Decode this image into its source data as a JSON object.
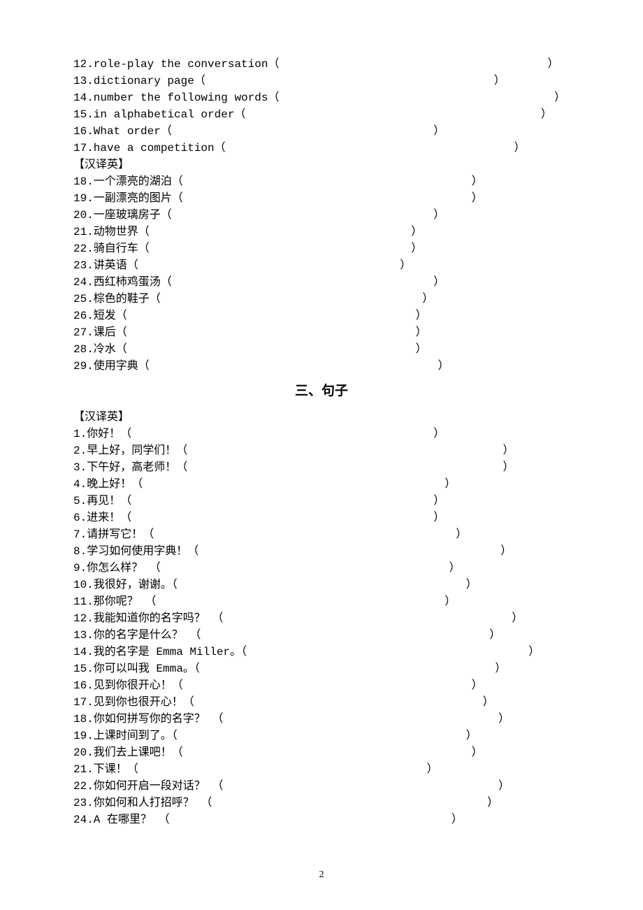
{
  "section1_items": [
    {
      "num": "12",
      "text": "role-play the conversation",
      "gap": "                                        "
    },
    {
      "num": "13",
      "text": "dictionary page",
      "gap": "                                           "
    },
    {
      "num": "14",
      "text": "number the following words",
      "gap": "                                         "
    },
    {
      "num": "15",
      "text": "in alphabetical order",
      "gap": "                                            "
    },
    {
      "num": "16",
      "text": "What order",
      "gap": "                                       "
    },
    {
      "num": "17",
      "text": "have a competition",
      "gap": "                                           "
    }
  ],
  "section2_label": "【汉译英】",
  "section2_items": [
    {
      "num": "18",
      "text": "一个漂亮的湖泊",
      "gap": "                                           "
    },
    {
      "num": "19",
      "text": "一副漂亮的图片",
      "gap": "                                           "
    },
    {
      "num": "20",
      "text": "一座玻璃房子",
      "gap": "                                       "
    },
    {
      "num": "21",
      "text": "动物世界",
      "gap": "                                       "
    },
    {
      "num": "22",
      "text": "骑自行车",
      "gap": "                                       "
    },
    {
      "num": "23",
      "text": "讲英语",
      "gap": "                                       "
    },
    {
      "num": "24",
      "text": "西红柿鸡蛋汤",
      "gap": "                                       "
    },
    {
      "num": "25",
      "text": "棕色的鞋子",
      "gap": "                                       "
    },
    {
      "num": "26",
      "text": "短发",
      "gap": "                                           "
    },
    {
      "num": "27",
      "text": "课后",
      "gap": "                                           "
    },
    {
      "num": "28",
      "text": "冷水",
      "gap": "                                           "
    },
    {
      "num": "29",
      "text": "使用字典",
      "gap": "                                           "
    }
  ],
  "heading3": "三、句子",
  "section3_label": "【汉译英】",
  "section3_items": [
    {
      "num": "1",
      "text": "你好！",
      "gap": "                                             "
    },
    {
      "num": "2",
      "text": "早上好，同学们！",
      "gap": "                                               "
    },
    {
      "num": "3",
      "text": "下午好，高老师！",
      "gap": "                                               "
    },
    {
      "num": "4",
      "text": "晚上好！",
      "gap": "                                             "
    },
    {
      "num": "5",
      "text": "再见！",
      "gap": "                                             "
    },
    {
      "num": "6",
      "text": "进来！",
      "gap": "                                             "
    },
    {
      "num": "7",
      "text": "请拼写它！",
      "gap": "                                             "
    },
    {
      "num": "8",
      "text": "学习如何使用字典！",
      "gap": "                                             "
    },
    {
      "num": "9",
      "text": "你怎么样？ ",
      "gap": "                                           "
    },
    {
      "num": "10",
      "text": "我很好，谢谢。",
      "gap": "                                           "
    },
    {
      "num": "11",
      "text": "那你呢？ ",
      "gap": "                                           "
    },
    {
      "num": "12",
      "text": "我能知道你的名字吗？ ",
      "gap": "                                           "
    },
    {
      "num": "13",
      "text": "你的名字是什么？ ",
      "gap": "                                           "
    },
    {
      "num": "14",
      "text": "我的名字是 Emma Miller。",
      "gap": "                                          "
    },
    {
      "num": "15",
      "text": "你可以叫我 Emma。",
      "gap": "                                            "
    },
    {
      "num": "16",
      "text": "见到你很开心！",
      "gap": "                                           "
    },
    {
      "num": "17",
      "text": "见到你也很开心！",
      "gap": "                                           "
    },
    {
      "num": "18",
      "text": "你如何拼写你的名字？ ",
      "gap": "                                         "
    },
    {
      "num": "19",
      "text": "上课时间到了。",
      "gap": "                                           "
    },
    {
      "num": "20",
      "text": "我们去上课吧！",
      "gap": "                                           "
    },
    {
      "num": "21",
      "text": "下课！",
      "gap": "                                           "
    },
    {
      "num": "22",
      "text": "你如何开启一段对话？ ",
      "gap": "                                         "
    },
    {
      "num": "23",
      "text": "你如何和人打招呼？ ",
      "gap": "                                         "
    },
    {
      "num": "24",
      "text": "A 在哪里？ ",
      "gap": "                                          "
    }
  ],
  "page_number": "2"
}
